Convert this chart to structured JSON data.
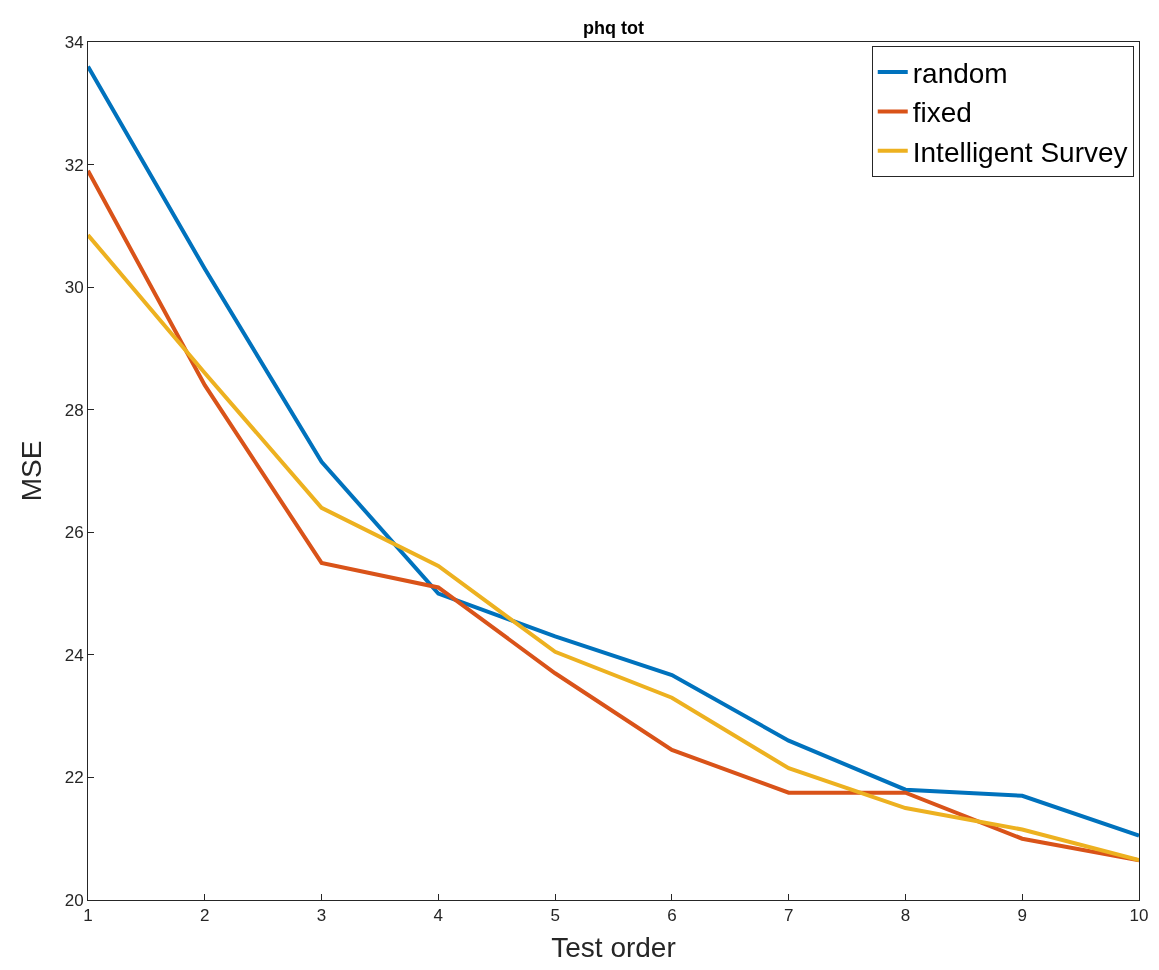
{
  "chart_data": {
    "type": "line",
    "title": "phq tot",
    "xlabel": "Test order",
    "ylabel": "MSE",
    "x": [
      1,
      2,
      3,
      4,
      5,
      6,
      7,
      8,
      9,
      10
    ],
    "series": [
      {
        "name": "random",
        "color": "#0072bd",
        "values": [
          33.6,
          30.3,
          27.15,
          25.0,
          24.3,
          23.67,
          22.6,
          21.8,
          21.7,
          21.05
        ]
      },
      {
        "name": "fixed",
        "color": "#d95319",
        "values": [
          31.9,
          28.4,
          25.5,
          25.1,
          23.7,
          22.45,
          21.75,
          21.75,
          21.0,
          20.65
        ]
      },
      {
        "name": "Intelligent Survey",
        "color": "#edb120",
        "values": [
          30.85,
          28.6,
          26.4,
          25.45,
          24.05,
          23.3,
          22.15,
          21.5,
          21.15,
          20.65
        ]
      }
    ],
    "xlim": [
      1,
      10
    ],
    "xticks": [
      1,
      2,
      3,
      4,
      5,
      6,
      7,
      8,
      9,
      10
    ],
    "ylim": [
      20,
      34
    ],
    "yticks": [
      20,
      22,
      24,
      26,
      28,
      30,
      32,
      34
    ],
    "grid": false,
    "legend": "top right",
    "marker": "none",
    "line_style": "solid"
  }
}
